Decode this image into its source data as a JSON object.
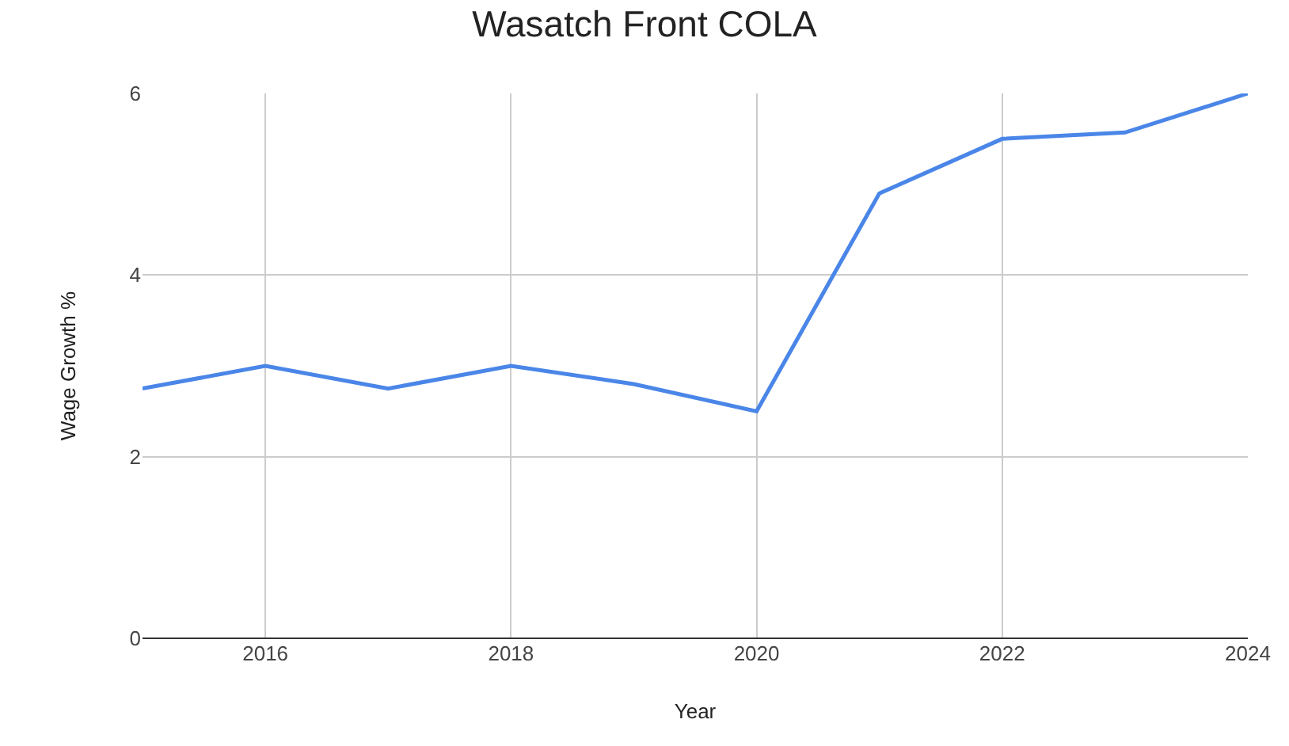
{
  "chart_data": {
    "type": "line",
    "title": "Wasatch Front COLA",
    "xlabel": "Year",
    "ylabel": "Wage Growth %",
    "x": [
      2015,
      2016,
      2017,
      2018,
      2019,
      2020,
      2021,
      2022,
      2023,
      2024
    ],
    "series": [
      {
        "color": "#4a86e8",
        "values": [
          2.75,
          3.0,
          2.75,
          3.0,
          2.8,
          2.5,
          4.9,
          5.5,
          5.57,
          6.0
        ]
      }
    ],
    "xlim": [
      2015,
      2024
    ],
    "xticks": [
      2016,
      2018,
      2020,
      2022,
      2024
    ],
    "ylim": [
      0,
      6
    ],
    "yticks": [
      0,
      2,
      4,
      6
    ],
    "grid": true,
    "marker": "none",
    "line_style": "solid"
  }
}
